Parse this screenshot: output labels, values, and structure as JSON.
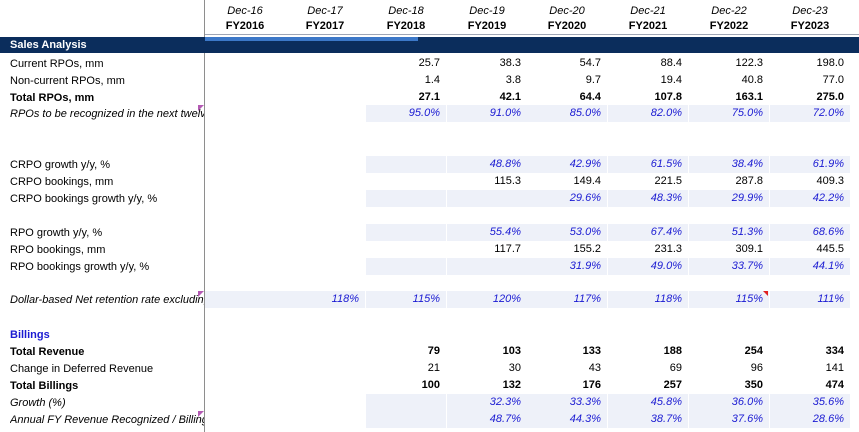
{
  "header": {
    "columns": [
      {
        "date": "Dec-16",
        "fy": "FY2016"
      },
      {
        "date": "Dec-17",
        "fy": "FY2017"
      },
      {
        "date": "Dec-18",
        "fy": "FY2018"
      },
      {
        "date": "Dec-19",
        "fy": "FY2019"
      },
      {
        "date": "Dec-20",
        "fy": "FY2020"
      },
      {
        "date": "Dec-21",
        "fy": "FY2021"
      },
      {
        "date": "Dec-22",
        "fy": "FY2022"
      },
      {
        "date": "Dec-23",
        "fy": "FY2023"
      }
    ]
  },
  "section_title": "Sales Analysis",
  "rows": [
    {
      "label": "Current RPOs, mm",
      "values": [
        "",
        "",
        "25.7",
        "38.3",
        "54.7",
        "88.4",
        "122.3",
        "198.0"
      ]
    },
    {
      "label": "Non-current RPOs, mm",
      "values": [
        "",
        "",
        "1.4",
        "3.8",
        "9.7",
        "19.4",
        "40.8",
        "77.0"
      ]
    },
    {
      "label": "Total RPOs, mm",
      "values": [
        "",
        "",
        "27.1",
        "42.1",
        "64.4",
        "107.8",
        "163.1",
        "275.0"
      ]
    },
    {
      "label": "RPOs to be recognized in the next twelve months, %",
      "values": [
        "",
        "",
        "95.0%",
        "91.0%",
        "85.0%",
        "82.0%",
        "75.0%",
        "72.0%"
      ]
    },
    {
      "label": "CRPO growth y/y, %",
      "values": [
        "",
        "",
        "",
        "48.8%",
        "42.9%",
        "61.5%",
        "38.4%",
        "61.9%"
      ]
    },
    {
      "label": "CRPO bookings, mm",
      "values": [
        "",
        "",
        "",
        "115.3",
        "149.4",
        "221.5",
        "287.8",
        "409.3"
      ]
    },
    {
      "label": "CRPO bookings growth y/y, %",
      "values": [
        "",
        "",
        "",
        "",
        "29.6%",
        "48.3%",
        "29.9%",
        "42.2%"
      ]
    },
    {
      "label": "RPO growth y/y, %",
      "values": [
        "",
        "",
        "",
        "55.4%",
        "53.0%",
        "67.4%",
        "51.3%",
        "68.6%"
      ]
    },
    {
      "label": "RPO bookings, mm",
      "values": [
        "",
        "",
        "",
        "117.7",
        "155.2",
        "231.3",
        "309.1",
        "445.5"
      ]
    },
    {
      "label": "RPO bookings growth y/y, %",
      "values": [
        "",
        "",
        "",
        "",
        "31.9%",
        "49.0%",
        "33.7%",
        "44.1%"
      ]
    },
    {
      "label": "Dollar-based Net retention rate excluding SMB customers",
      "values": [
        "",
        "118%",
        "115%",
        "120%",
        "117%",
        "118%",
        "115%",
        "111%"
      ]
    },
    {
      "label": "Billings",
      "values": [
        "",
        "",
        "",
        "",
        "",
        "",
        "",
        ""
      ]
    },
    {
      "label": "Total Revenue",
      "values": [
        "",
        "",
        "79",
        "103",
        "133",
        "188",
        "254",
        "334"
      ]
    },
    {
      "label": "Change in Deferred Revenue",
      "values": [
        "",
        "",
        "21",
        "30",
        "43",
        "69",
        "96",
        "141"
      ]
    },
    {
      "label": "Total Billings",
      "values": [
        "",
        "",
        "100",
        "132",
        "176",
        "257",
        "350",
        "474"
      ]
    },
    {
      "label": "Growth (%)",
      "values": [
        "",
        "",
        "",
        "32.3%",
        "33.3%",
        "45.8%",
        "36.0%",
        "35.6%"
      ]
    },
    {
      "label": "Annual FY Revenue Recognized / Billings",
      "values": [
        "",
        "",
        "",
        "48.7%",
        "44.3%",
        "38.7%",
        "37.6%",
        "28.6%"
      ]
    }
  ],
  "colors": {
    "band": "#0b2d5c",
    "accent": "#3c78c8",
    "blue_text": "#1a1ad2",
    "shade": "#eef1f9",
    "comment_marker": "#b45ab4",
    "red_marker": "#e02020"
  }
}
